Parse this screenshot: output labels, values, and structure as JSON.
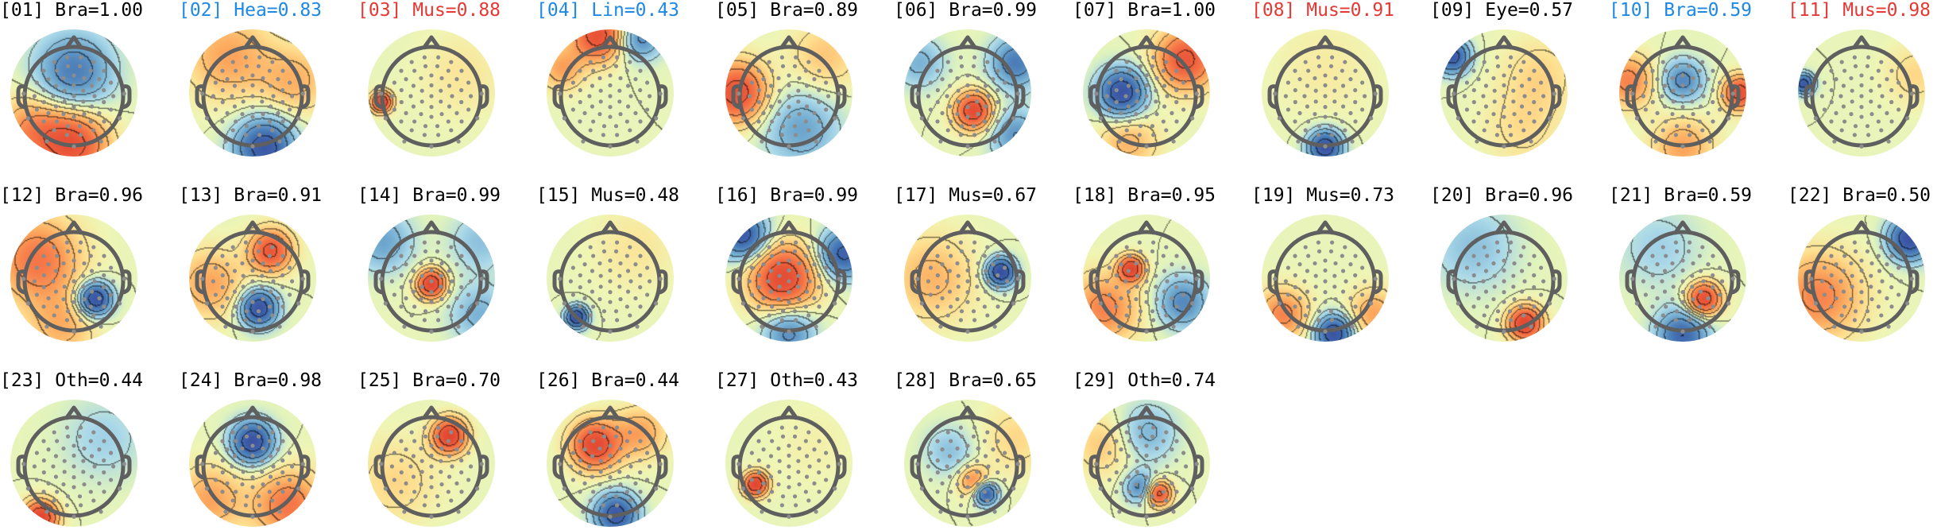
{
  "colors": {
    "black": "#000000",
    "blue": "#1e88e5",
    "red": "#e53935",
    "head": "#5f5f5f",
    "electrode": "#8c8c8c"
  },
  "components": [
    {
      "id": "[01]",
      "text": "Bra=1.00",
      "color": "black",
      "blobs": [
        {
          "u": 0.0,
          "v": 0.35,
          "s": -0.9,
          "w": 0.45
        },
        {
          "u": 0.0,
          "v": -0.85,
          "s": 1.2,
          "w": 0.4
        },
        {
          "u": -0.7,
          "v": -0.6,
          "s": 0.7,
          "w": 0.4
        }
      ]
    },
    {
      "id": "[02]",
      "text": "Hea=0.83",
      "color": "blue",
      "blobs": [
        {
          "u": 0.2,
          "v": -0.9,
          "s": -1.3,
          "w": 0.35
        },
        {
          "u": -0.4,
          "v": 0.6,
          "s": 0.6,
          "w": 0.5
        },
        {
          "u": 0.7,
          "v": 0.2,
          "s": 0.5,
          "w": 0.4
        }
      ]
    },
    {
      "id": "[03]",
      "text": "Mus=0.88",
      "color": "red",
      "blobs": [
        {
          "u": -0.82,
          "v": -0.15,
          "s": 1.5,
          "w": 0.12
        },
        {
          "u": 0.5,
          "v": 0.3,
          "s": 0.2,
          "w": 0.5
        }
      ]
    },
    {
      "id": "[04]",
      "text": "Lin=0.43",
      "color": "blue",
      "blobs": [
        {
          "u": -0.2,
          "v": 0.95,
          "s": 1.3,
          "w": 0.3
        },
        {
          "u": 0.5,
          "v": 0.9,
          "s": -0.8,
          "w": 0.25
        },
        {
          "u": -0.8,
          "v": 0.4,
          "s": 0.6,
          "w": 0.25
        }
      ]
    },
    {
      "id": "[05]",
      "text": "Bra=0.89",
      "color": "black",
      "blobs": [
        {
          "u": -0.85,
          "v": 0.0,
          "s": 1.3,
          "w": 0.35
        },
        {
          "u": 0.2,
          "v": -0.6,
          "s": -0.6,
          "w": 0.45
        },
        {
          "u": 0.6,
          "v": 0.6,
          "s": 0.4,
          "w": 0.4
        }
      ]
    },
    {
      "id": "[06]",
      "text": "Bra=0.99",
      "color": "black",
      "blobs": [
        {
          "u": 0.1,
          "v": -0.3,
          "s": 1.4,
          "w": 0.22
        },
        {
          "u": 0.8,
          "v": 0.5,
          "s": -0.9,
          "w": 0.3
        },
        {
          "u": -0.8,
          "v": 0.5,
          "s": -0.5,
          "w": 0.3
        },
        {
          "u": 0.8,
          "v": -0.7,
          "s": -0.7,
          "w": 0.3
        }
      ]
    },
    {
      "id": "[07]",
      "text": "Bra=1.00",
      "color": "black",
      "blobs": [
        {
          "u": -0.4,
          "v": 0.0,
          "s": -1.4,
          "w": 0.28
        },
        {
          "u": 0.65,
          "v": 0.55,
          "s": 1.2,
          "w": 0.35
        },
        {
          "u": -0.3,
          "v": -0.8,
          "s": 0.5,
          "w": 0.35
        }
      ]
    },
    {
      "id": "[08]",
      "text": "Mus=0.91",
      "color": "red",
      "blobs": [
        {
          "u": 0.0,
          "v": -0.9,
          "s": -1.4,
          "w": 0.2
        },
        {
          "u": 0.0,
          "v": 0.4,
          "s": 0.15,
          "w": 0.6
        }
      ]
    },
    {
      "id": "[09]",
      "text": "Eye=0.57",
      "color": "black",
      "blobs": [
        {
          "u": -0.85,
          "v": 0.6,
          "s": -1.3,
          "w": 0.2
        },
        {
          "u": 0.6,
          "v": 0.3,
          "s": 0.3,
          "w": 0.45
        },
        {
          "u": 0.3,
          "v": -0.6,
          "s": 0.25,
          "w": 0.45
        }
      ]
    },
    {
      "id": "[10]",
      "text": "Bra=0.59",
      "color": "blue",
      "blobs": [
        {
          "u": 0.0,
          "v": 0.2,
          "s": -0.8,
          "w": 0.25
        },
        {
          "u": 0.95,
          "v": 0.0,
          "s": 1.3,
          "w": 0.2
        },
        {
          "u": -0.9,
          "v": 0.2,
          "s": 0.8,
          "w": 0.3
        },
        {
          "u": 0.0,
          "v": -0.9,
          "s": 0.6,
          "w": 0.35
        }
      ]
    },
    {
      "id": "[11]",
      "text": "Mus=0.98",
      "color": "red",
      "blobs": [
        {
          "u": -0.95,
          "v": 0.15,
          "s": -1.3,
          "w": 0.12
        },
        {
          "u": 0.9,
          "v": 0.3,
          "s": 0.3,
          "w": 0.35
        }
      ]
    },
    {
      "id": "[12]",
      "text": "Bra=0.96",
      "color": "black",
      "blobs": [
        {
          "u": 0.35,
          "v": -0.35,
          "s": -1.5,
          "w": 0.2
        },
        {
          "u": -0.6,
          "v": 0.3,
          "s": 0.9,
          "w": 0.5
        },
        {
          "u": -0.2,
          "v": -0.8,
          "s": 0.5,
          "w": 0.4
        }
      ]
    },
    {
      "id": "[13]",
      "text": "Bra=0.91",
      "color": "black",
      "blobs": [
        {
          "u": 0.1,
          "v": -0.5,
          "s": -1.4,
          "w": 0.22
        },
        {
          "u": 0.3,
          "v": 0.45,
          "s": 1.2,
          "w": 0.25
        },
        {
          "u": -0.7,
          "v": -0.1,
          "s": 0.6,
          "w": 0.4
        }
      ]
    },
    {
      "id": "[14]",
      "text": "Bra=0.99",
      "color": "black",
      "blobs": [
        {
          "u": 0.0,
          "v": -0.1,
          "s": 1.5,
          "w": 0.17
        },
        {
          "u": -0.8,
          "v": 0.6,
          "s": -0.6,
          "w": 0.35
        },
        {
          "u": 0.8,
          "v": -0.6,
          "s": -0.5,
          "w": 0.35
        },
        {
          "u": 0.8,
          "v": 0.6,
          "s": -0.4,
          "w": 0.35
        }
      ]
    },
    {
      "id": "[15]",
      "text": "Mus=0.48",
      "color": "black",
      "blobs": [
        {
          "u": -0.55,
          "v": -0.65,
          "s": -1.5,
          "w": 0.13
        },
        {
          "u": 0.4,
          "v": 0.5,
          "s": 0.2,
          "w": 0.5
        }
      ]
    },
    {
      "id": "[16]",
      "text": "Bra=0.99",
      "color": "black",
      "blobs": [
        {
          "u": -0.1,
          "v": 0.0,
          "s": 1.4,
          "w": 0.38
        },
        {
          "u": -0.75,
          "v": 0.7,
          "s": -1.3,
          "w": 0.28
        },
        {
          "u": 0.9,
          "v": 0.4,
          "s": -1.2,
          "w": 0.28
        },
        {
          "u": 0.0,
          "v": -0.9,
          "s": -0.8,
          "w": 0.3
        }
      ]
    },
    {
      "id": "[17]",
      "text": "Mus=0.67",
      "color": "black",
      "blobs": [
        {
          "u": 0.55,
          "v": 0.1,
          "s": -1.5,
          "w": 0.17
        },
        {
          "u": -0.6,
          "v": 0.0,
          "s": 0.5,
          "w": 0.5
        }
      ]
    },
    {
      "id": "[18]",
      "text": "Bra=0.95",
      "color": "black",
      "blobs": [
        {
          "u": -0.25,
          "v": 0.15,
          "s": 1.4,
          "w": 0.15
        },
        {
          "u": 0.6,
          "v": -0.4,
          "s": -0.8,
          "w": 0.3
        },
        {
          "u": -0.7,
          "v": -0.5,
          "s": 0.8,
          "w": 0.4
        }
      ]
    },
    {
      "id": "[19]",
      "text": "Mus=0.73",
      "color": "black",
      "blobs": [
        {
          "u": 0.15,
          "v": -0.92,
          "s": -1.4,
          "w": 0.22
        },
        {
          "u": -0.7,
          "v": -0.6,
          "s": 0.8,
          "w": 0.3
        },
        {
          "u": 0.8,
          "v": -0.6,
          "s": 0.6,
          "w": 0.3
        }
      ]
    },
    {
      "id": "[20]",
      "text": "Bra=0.96",
      "color": "black",
      "blobs": [
        {
          "u": 0.35,
          "v": -0.75,
          "s": 1.5,
          "w": 0.2
        },
        {
          "u": -0.5,
          "v": 0.5,
          "s": -0.4,
          "w": 0.5
        }
      ]
    },
    {
      "id": "[21]",
      "text": "Bra=0.59",
      "color": "black",
      "blobs": [
        {
          "u": 0.35,
          "v": -0.35,
          "s": 1.4,
          "w": 0.2
        },
        {
          "u": 0.0,
          "v": -0.95,
          "s": -1.1,
          "w": 0.3
        },
        {
          "u": -0.4,
          "v": 0.5,
          "s": -0.3,
          "w": 0.5
        }
      ]
    },
    {
      "id": "[22]",
      "text": "Bra=0.50",
      "color": "black",
      "blobs": [
        {
          "u": 0.8,
          "v": 0.65,
          "s": -1.4,
          "w": 0.25
        },
        {
          "u": -0.7,
          "v": -0.3,
          "s": 0.8,
          "w": 0.5
        }
      ]
    },
    {
      "id": "[23]",
      "text": "Oth=0.44",
      "color": "black",
      "blobs": [
        {
          "u": -0.55,
          "v": -0.9,
          "s": 1.5,
          "w": 0.2
        },
        {
          "u": 0.5,
          "v": 0.4,
          "s": -0.3,
          "w": 0.5
        }
      ]
    },
    {
      "id": "[24]",
      "text": "Bra=0.98",
      "color": "black",
      "blobs": [
        {
          "u": 0.0,
          "v": 0.35,
          "s": -1.4,
          "w": 0.25
        },
        {
          "u": 0.6,
          "v": -0.7,
          "s": 0.9,
          "w": 0.4
        },
        {
          "u": -0.7,
          "v": -0.6,
          "s": 0.6,
          "w": 0.4
        }
      ]
    },
    {
      "id": "[25]",
      "text": "Bra=0.70",
      "color": "black",
      "blobs": [
        {
          "u": 0.3,
          "v": 0.45,
          "s": 1.5,
          "w": 0.2
        },
        {
          "u": -0.6,
          "v": -0.3,
          "s": 0.3,
          "w": 0.5
        }
      ]
    },
    {
      "id": "[26]",
      "text": "Bra=0.44",
      "color": "black",
      "blobs": [
        {
          "u": -0.25,
          "v": 0.3,
          "s": 1.4,
          "w": 0.28
        },
        {
          "u": 0.1,
          "v": -0.85,
          "s": -1.3,
          "w": 0.25
        },
        {
          "u": 0.5,
          "v": 0.5,
          "s": 0.6,
          "w": 0.3
        }
      ]
    },
    {
      "id": "[27]",
      "text": "Oth=0.43",
      "color": "black",
      "blobs": [
        {
          "u": -0.55,
          "v": -0.35,
          "s": 1.5,
          "w": 0.14
        },
        {
          "u": 0.4,
          "v": 0.3,
          "s": 0.1,
          "w": 0.5
        }
      ]
    },
    {
      "id": "[28]",
      "text": "Bra=0.65",
      "color": "black",
      "blobs": [
        {
          "u": 0.3,
          "v": -0.5,
          "s": -1.3,
          "w": 0.14
        },
        {
          "u": 0.1,
          "v": -0.3,
          "s": 0.8,
          "w": 0.18
        },
        {
          "u": -0.3,
          "v": 0.2,
          "s": -0.4,
          "w": 0.3
        },
        {
          "u": 0.8,
          "v": 0.4,
          "s": 0.3,
          "w": 0.4
        }
      ]
    },
    {
      "id": "[29]",
      "text": "Oth=0.74",
      "color": "black",
      "blobs": [
        {
          "u": 0.2,
          "v": -0.5,
          "s": 1.3,
          "w": 0.15
        },
        {
          "u": -0.1,
          "v": -0.4,
          "s": -0.8,
          "w": 0.18
        },
        {
          "u": 0.0,
          "v": 0.5,
          "s": -0.5,
          "w": 0.35
        },
        {
          "u": -0.7,
          "v": 0.3,
          "s": 0.4,
          "w": 0.35
        }
      ]
    }
  ]
}
